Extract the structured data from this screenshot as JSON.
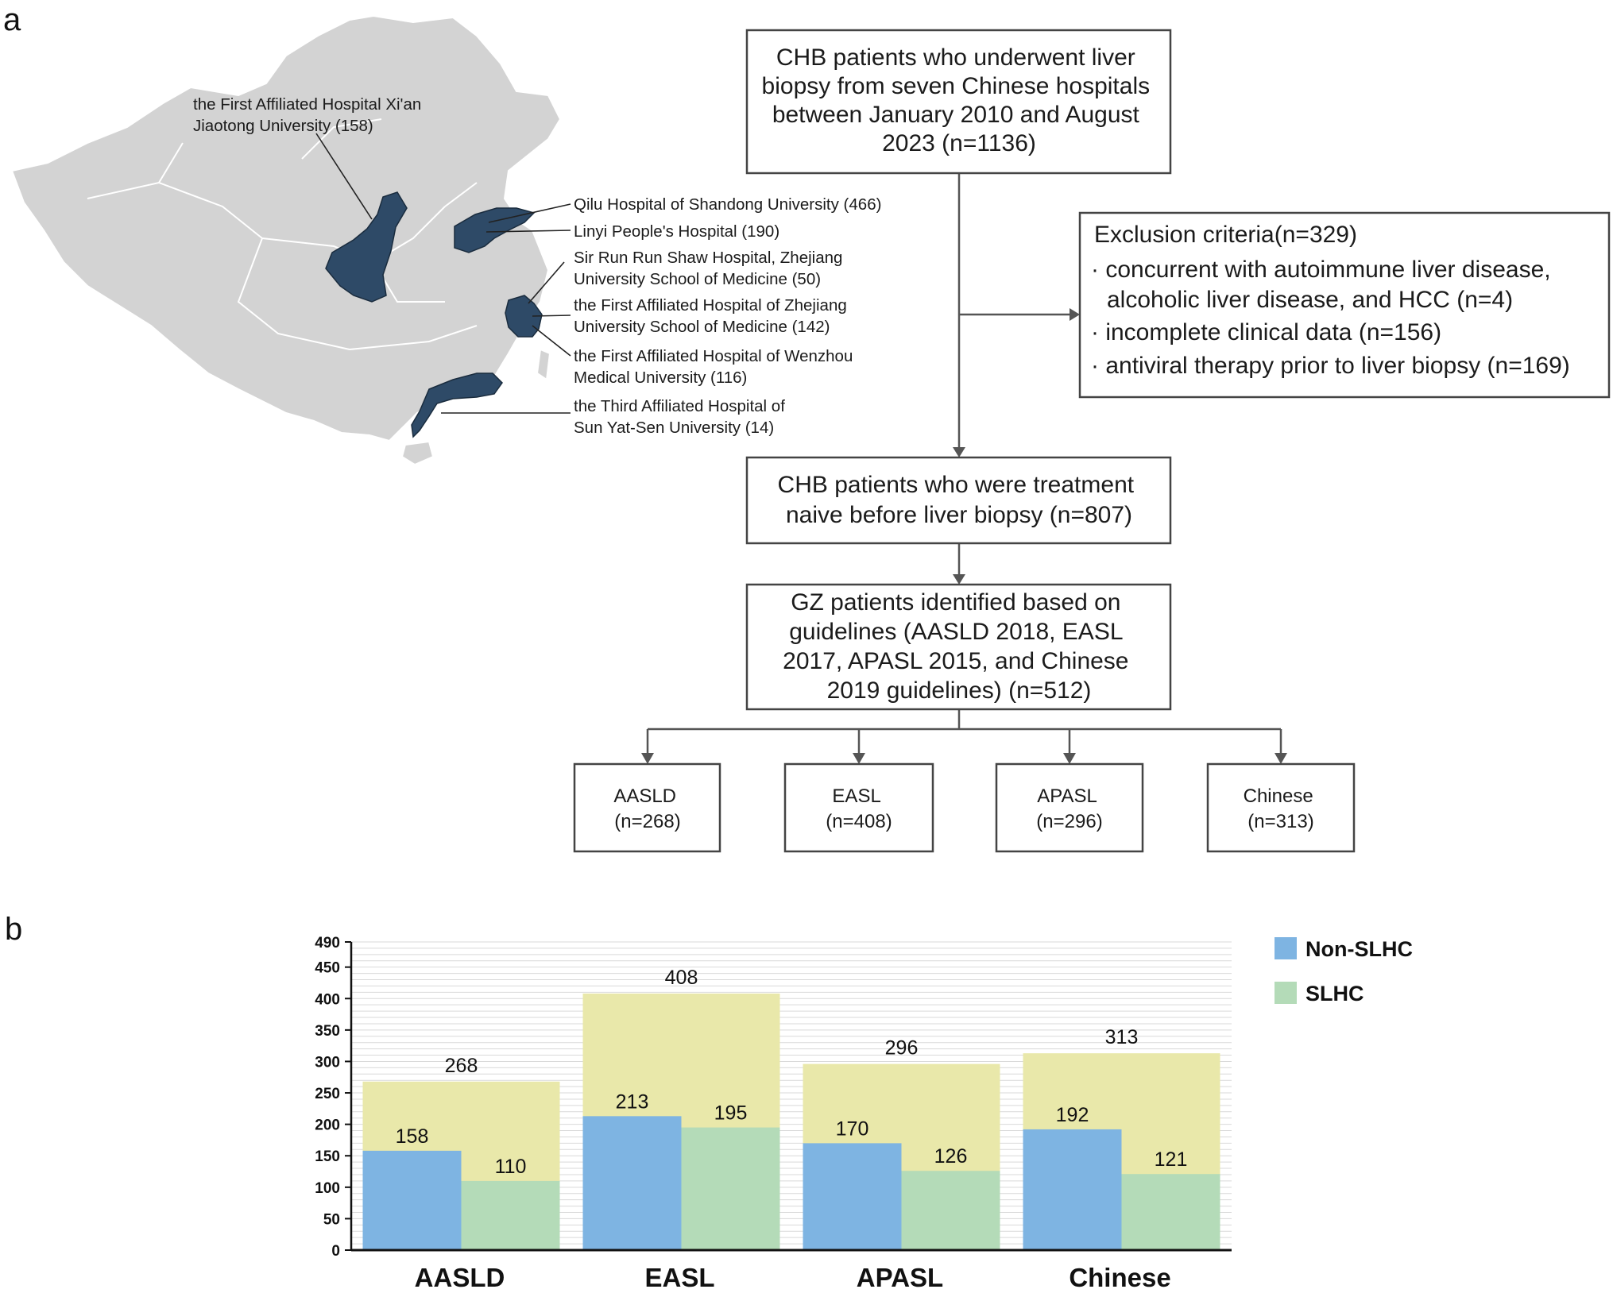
{
  "panels": {
    "a": "a",
    "b": "b"
  },
  "hospitals": [
    {
      "lines": [
        "the First Affiliated Hospital Xi'an",
        "Jiaotong University (158)"
      ]
    },
    {
      "lines": [
        "Qilu Hospital of Shandong University (466)"
      ]
    },
    {
      "lines": [
        "Linyi People's Hospital (190)"
      ]
    },
    {
      "lines": [
        "Sir Run Run Shaw Hospital, Zhejiang",
        "University School of Medicine (50)"
      ]
    },
    {
      "lines": [
        "the First Affiliated Hospital of Zhejiang",
        "University School of Medicine (142)"
      ]
    },
    {
      "lines": [
        "the First Affiliated Hospital of  Wenzhou",
        "Medical University (116)"
      ]
    },
    {
      "lines": [
        "the Third Affiliated Hospital of",
        "Sun Yat-Sen University (14)"
      ]
    }
  ],
  "flow": {
    "top": [
      "CHB patients who underwent liver",
      "biopsy from seven Chinese hospitals",
      "between January 2010 and August",
      "2023 (n=1136)"
    ],
    "exclusion": {
      "title": "Exclusion criteria(n=329)",
      "items": [
        "· concurrent with autoimmune liver disease,",
        "alcoholic liver disease, and HCC (n=4)",
        "· incomplete clinical data (n=156)",
        "· antiviral therapy prior to liver biopsy (n=169)"
      ]
    },
    "naive": [
      "CHB patients who were treatment",
      "naive before liver biopsy (n=807)"
    ],
    "gz": [
      "GZ patients identified based on",
      "guidelines (AASLD 2018, EASL",
      "2017, APASL 2015, and Chinese",
      "2019 guidelines) (n=512)"
    ],
    "guidelines": [
      {
        "name": "AASLD",
        "n": "(n=268)"
      },
      {
        "name": "EASL",
        "n": "(n=408)"
      },
      {
        "name": "APASL",
        "n": "(n=296)"
      },
      {
        "name": "Chinese",
        "n": "(n=313)"
      }
    ]
  },
  "colors": {
    "non_slhc": "#7eb4e2",
    "slhc": "#b4dbb8",
    "total": "#e9e8aa",
    "province": "#2e4a67",
    "map": "#d3d3d3"
  },
  "chart_data": {
    "type": "bar",
    "categories": [
      "AASLD",
      "EASL",
      "APASL",
      "Chinese"
    ],
    "series": [
      {
        "name": "Non-SLHC",
        "values": [
          158,
          213,
          170,
          192
        ]
      },
      {
        "name": "SLHC",
        "values": [
          110,
          195,
          126,
          121
        ]
      }
    ],
    "totals": [
      268,
      408,
      296,
      313
    ],
    "yticks": [
      0,
      50,
      100,
      150,
      200,
      250,
      300,
      350,
      400,
      450,
      490
    ],
    "ylim": [
      0,
      490
    ],
    "legend": [
      "Non-SLHC",
      "SLHC"
    ],
    "legend_position": "top-right",
    "grid": true
  }
}
